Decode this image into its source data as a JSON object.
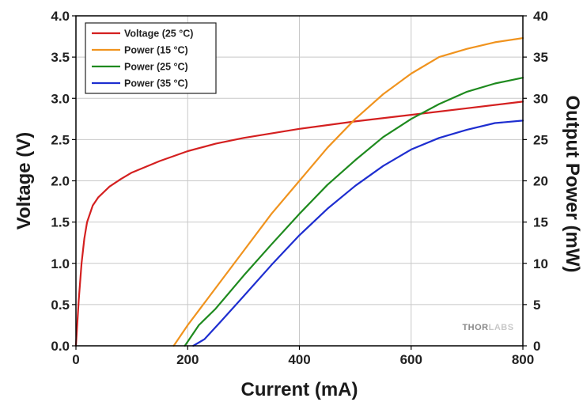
{
  "chart_data": {
    "type": "line",
    "title": "",
    "xlabel": "Current (mA)",
    "ylabel": "Voltage (V)",
    "y2label": "Output Power (mW)",
    "xlim": [
      0,
      800
    ],
    "ylim": [
      0,
      4.0
    ],
    "y2lim": [
      0,
      40
    ],
    "x_ticks": [
      "0",
      "200",
      "400",
      "600",
      "800"
    ],
    "y_ticks": [
      "0.0",
      "0.5",
      "1.0",
      "1.5",
      "2.0",
      "2.5",
      "3.0",
      "3.5",
      "4.0"
    ],
    "y2_ticks": [
      "0",
      "5",
      "10",
      "15",
      "20",
      "25",
      "30",
      "35",
      "40"
    ],
    "grid": true,
    "legend_position": "top-left",
    "watermark": "THORLABS",
    "series": [
      {
        "name": "Voltage (25 °C)",
        "axis": "left",
        "color": "#d42020",
        "x": [
          0,
          5,
          10,
          15,
          20,
          30,
          40,
          60,
          80,
          100,
          150,
          200,
          250,
          300,
          400,
          500,
          600,
          700,
          800
        ],
        "y": [
          0,
          0.55,
          1.0,
          1.3,
          1.5,
          1.7,
          1.8,
          1.93,
          2.02,
          2.1,
          2.24,
          2.36,
          2.45,
          2.52,
          2.63,
          2.72,
          2.8,
          2.88,
          2.96
        ]
      },
      {
        "name": "Power (15 °C)",
        "axis": "right",
        "color": "#f0931e",
        "x": [
          175,
          200,
          250,
          300,
          350,
          400,
          450,
          500,
          550,
          600,
          650,
          700,
          750,
          800
        ],
        "y": [
          0,
          2.5,
          7.0,
          11.5,
          16.0,
          20.0,
          24.0,
          27.5,
          30.5,
          33.0,
          35.0,
          36.0,
          36.8,
          37.3
        ]
      },
      {
        "name": "Power (25 °C)",
        "axis": "right",
        "color": "#1e8a1e",
        "x": [
          195,
          220,
          250,
          300,
          350,
          400,
          450,
          500,
          550,
          600,
          650,
          700,
          750,
          800
        ],
        "y": [
          0,
          2.5,
          4.5,
          8.5,
          12.3,
          16.0,
          19.5,
          22.5,
          25.3,
          27.5,
          29.3,
          30.8,
          31.8,
          32.5
        ]
      },
      {
        "name": "Power (35 °C)",
        "axis": "right",
        "color": "#1e2ed0",
        "x": [
          210,
          230,
          260,
          300,
          350,
          400,
          450,
          500,
          550,
          600,
          650,
          700,
          750,
          800
        ],
        "y": [
          0,
          0.8,
          3.0,
          6.0,
          9.8,
          13.4,
          16.6,
          19.4,
          21.8,
          23.8,
          25.2,
          26.2,
          27.0,
          27.3
        ]
      }
    ]
  }
}
